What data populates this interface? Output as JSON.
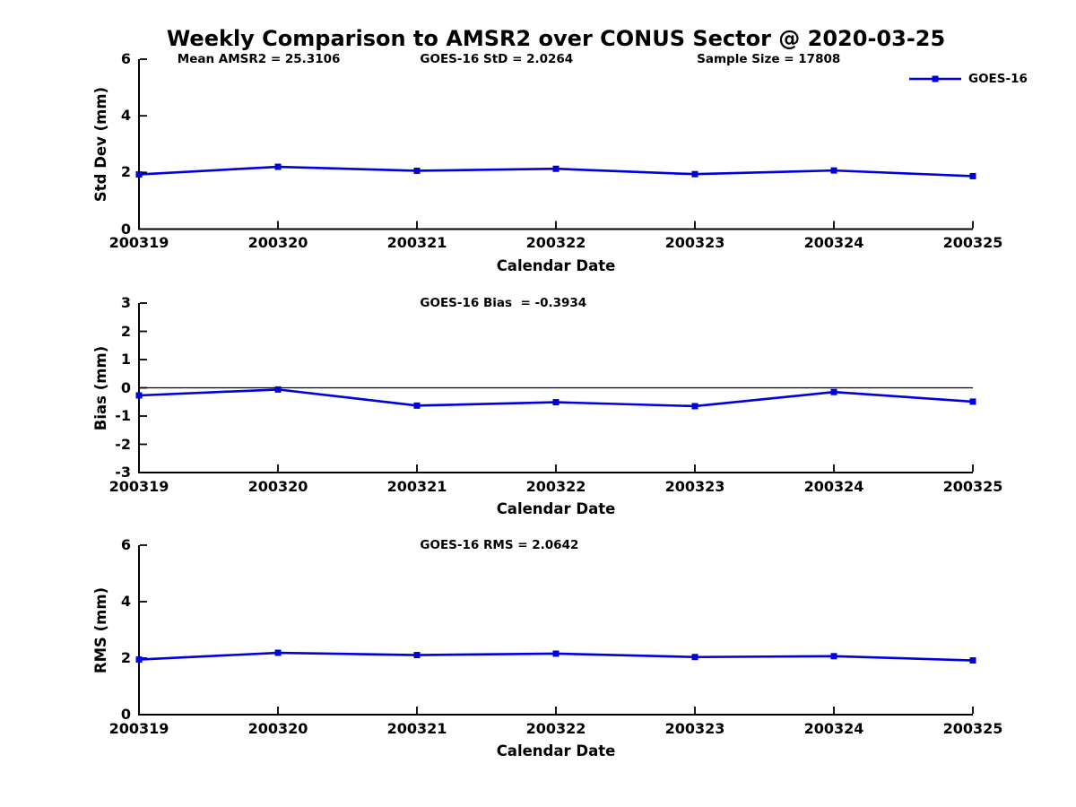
{
  "title": "Weekly Comparison to AMSR2 over CONUS Sector @ 2020-03-25",
  "colors": {
    "series_line": "#0000dd",
    "axis": "#000000",
    "zero_line": "#000000",
    "text": "#000000",
    "background": "#ffffff"
  },
  "legend": {
    "label": "GOES-16"
  },
  "chart_data": [
    {
      "id": "std-dev",
      "type": "line",
      "ylabel": "Std Dev (mm)",
      "xlabel": "Calendar Date",
      "categories": [
        "200319",
        "200320",
        "200321",
        "200322",
        "200323",
        "200324",
        "200325"
      ],
      "series": [
        {
          "name": "GOES-16",
          "values": [
            1.93,
            2.2,
            2.06,
            2.13,
            1.94,
            2.07,
            1.87
          ]
        }
      ],
      "ylim": [
        0,
        6
      ],
      "yticks": [
        0,
        2,
        4,
        6
      ],
      "annotations": [
        "Mean AMSR2 = 25.3106",
        "GOES-16 StD = 2.0264",
        "Sample Size = 17808"
      ],
      "zero_line": false,
      "legend": true,
      "legend_position": "top-right",
      "grid": false,
      "marker": "square"
    },
    {
      "id": "bias",
      "type": "line",
      "ylabel": "Bias (mm)",
      "xlabel": "Calendar Date",
      "categories": [
        "200319",
        "200320",
        "200321",
        "200322",
        "200323",
        "200324",
        "200325"
      ],
      "series": [
        {
          "name": "GOES-16",
          "values": [
            -0.27,
            -0.06,
            -0.63,
            -0.51,
            -0.65,
            -0.15,
            -0.49
          ]
        }
      ],
      "ylim": [
        -3,
        3
      ],
      "yticks": [
        3,
        2,
        1,
        0,
        -1,
        -2,
        -3
      ],
      "annotations": [
        "GOES-16 Bias  = -0.3934"
      ],
      "zero_line": true,
      "legend": false,
      "grid": false,
      "marker": "square"
    },
    {
      "id": "rms",
      "type": "line",
      "ylabel": "RMS (mm)",
      "xlabel": "Calendar Date",
      "categories": [
        "200319",
        "200320",
        "200321",
        "200322",
        "200323",
        "200324",
        "200325"
      ],
      "series": [
        {
          "name": "GOES-16",
          "values": [
            1.95,
            2.19,
            2.11,
            2.16,
            2.04,
            2.07,
            1.92
          ]
        }
      ],
      "ylim": [
        0,
        6
      ],
      "yticks": [
        0,
        2,
        4,
        6
      ],
      "annotations": [
        "GOES-16 RMS = 2.0642"
      ],
      "zero_line": false,
      "legend": false,
      "grid": false,
      "marker": "square"
    }
  ]
}
